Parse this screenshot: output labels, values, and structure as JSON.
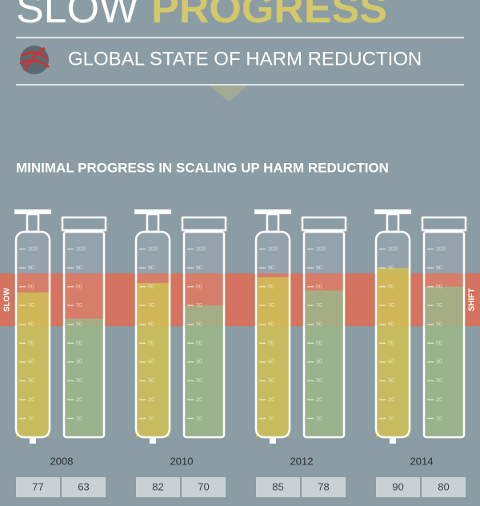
{
  "header": {
    "title": [
      "SLOW",
      "PROGRESS"
    ],
    "subtitle": "GLOBAL STATE OF HARM REDUCTION"
  },
  "chart_data": {
    "type": "bar",
    "title": "MINIMAL PROGRESS IN SCALING UP HARM REDUCTION",
    "categories": [
      "2008",
      "2010",
      "2012",
      "2014"
    ],
    "series": [
      {
        "color": "#cdbb45",
        "values": [
          77,
          82,
          85,
          90
        ]
      },
      {
        "color": "#93b07e",
        "values": [
          63,
          70,
          78,
          80
        ]
      }
    ],
    "ylim": [
      0,
      110
    ],
    "yticks": [
      10,
      20,
      30,
      40,
      50,
      60,
      70,
      80,
      90,
      100
    ],
    "band_labels": [
      "SLOW",
      "SHIFT"
    ]
  }
}
